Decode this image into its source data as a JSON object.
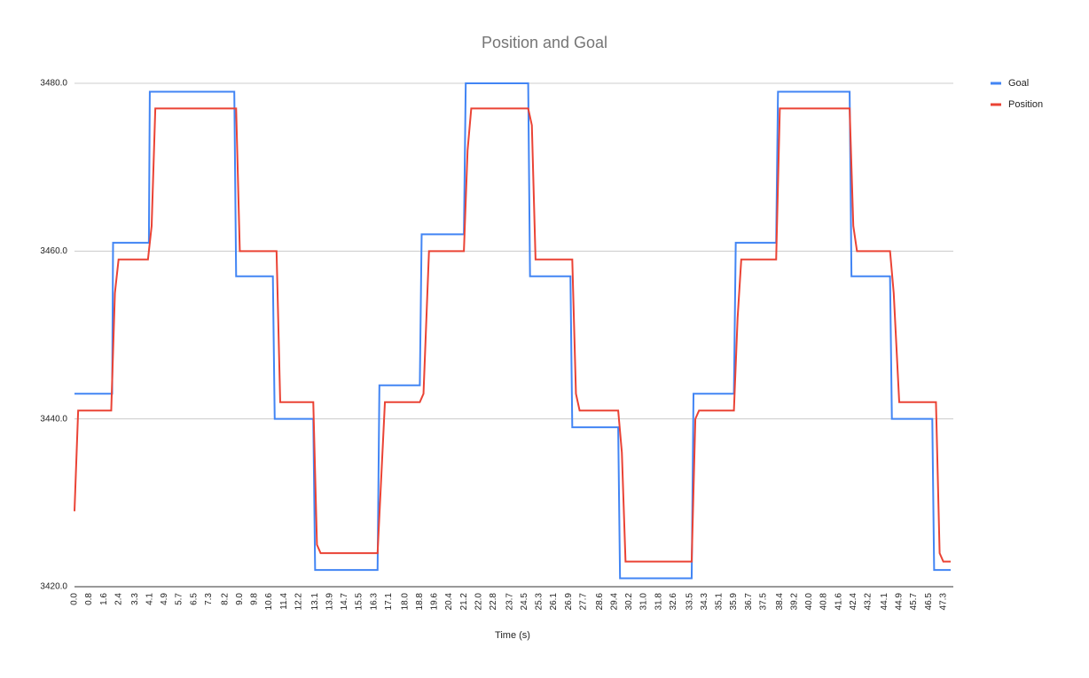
{
  "chart_data": {
    "type": "line",
    "title": "Position and Goal",
    "x_label": "Time (s)",
    "xlim": [
      0,
      47.7
    ],
    "ylim": [
      3420,
      3480
    ],
    "grid": true,
    "legend": "right",
    "xticks": [
      {
        "value": 0,
        "label": "0.0"
      },
      0.8,
      1.6,
      2.4,
      3.3,
      4.1,
      4.9,
      5.7,
      6.5,
      7.3,
      8.2,
      {
        "value": 9,
        "label": "9.0"
      },
      9.8,
      10.6,
      11.4,
      12.2,
      13.1,
      13.9,
      14.7,
      15.5,
      16.3,
      17.1,
      {
        "value": 18,
        "label": "18.0"
      },
      18.8,
      19.6,
      20.4,
      21.2,
      {
        "value": 22,
        "label": "22.0"
      },
      22.8,
      23.7,
      24.5,
      25.3,
      26.1,
      26.9,
      27.7,
      28.6,
      29.4,
      30.2,
      {
        "value": 31,
        "label": "31.0"
      },
      31.8,
      32.6,
      33.5,
      34.3,
      35.1,
      35.9,
      36.7,
      37.5,
      38.4,
      39.2,
      {
        "value": 40,
        "label": "40.0"
      },
      40.8,
      41.6,
      42.4,
      43.2,
      44.1,
      44.9,
      45.7,
      46.5,
      47.3
    ],
    "yticks": [
      {
        "value": 3420,
        "label": "3420.0"
      },
      {
        "value": 3440,
        "label": "3440.0"
      },
      {
        "value": 3460,
        "label": "3460.0"
      },
      {
        "value": 3480,
        "label": "3480.0"
      }
    ],
    "series": [
      {
        "name": "Goal",
        "color": "#4285f4",
        "x": [
          0,
          2.05,
          2.1,
          4.05,
          4.1,
          8.7,
          8.8,
          10.8,
          10.9,
          13.0,
          13.1,
          16.5,
          16.6,
          18.8,
          18.9,
          21.2,
          21.3,
          24.7,
          24.8,
          27.0,
          27.1,
          29.6,
          29.7,
          33.6,
          33.7,
          35.9,
          36.0,
          38.2,
          38.3,
          42.2,
          42.3,
          44.4,
          44.5,
          46.7,
          46.8,
          47.7
        ],
        "values": [
          3443,
          3443,
          3461,
          3461,
          3479,
          3479,
          3457,
          3457,
          3440,
          3440,
          3422,
          3422,
          3444,
          3444,
          3462,
          3462,
          3480,
          3480,
          3457,
          3457,
          3439,
          3439,
          3421,
          3421,
          3443,
          3443,
          3461,
          3461,
          3479,
          3479,
          3457,
          3457,
          3440,
          3440,
          3422,
          3422
        ]
      },
      {
        "name": "Position",
        "color": "#ea4335",
        "x": [
          0,
          0.2,
          2.0,
          2.2,
          2.4,
          4.0,
          4.2,
          4.4,
          8.8,
          9.0,
          11.0,
          11.2,
          13.0,
          13.2,
          13.4,
          16.5,
          16.7,
          16.9,
          18.8,
          19.0,
          19.3,
          21.2,
          21.4,
          21.6,
          24.7,
          24.9,
          25.1,
          27.1,
          27.3,
          27.5,
          29.6,
          29.8,
          30.0,
          33.6,
          33.8,
          34.0,
          35.9,
          36.1,
          36.3,
          38.2,
          38.4,
          42.2,
          42.4,
          42.6,
          44.4,
          44.6,
          44.9,
          46.9,
          47.1,
          47.3,
          47.7
        ],
        "values": [
          3429,
          3441,
          3441,
          3455,
          3459,
          3459,
          3463,
          3477,
          3477,
          3460,
          3460,
          3442,
          3442,
          3425,
          3424,
          3424,
          3433,
          3442,
          3442,
          3443,
          3460,
          3460,
          3472,
          3477,
          3477,
          3475,
          3459,
          3459,
          3443,
          3441,
          3441,
          3436,
          3423,
          3423,
          3440,
          3441,
          3441,
          3452,
          3459,
          3459,
          3477,
          3477,
          3463,
          3460,
          3460,
          3455,
          3442,
          3442,
          3424,
          3423,
          3423
        ]
      }
    ]
  }
}
